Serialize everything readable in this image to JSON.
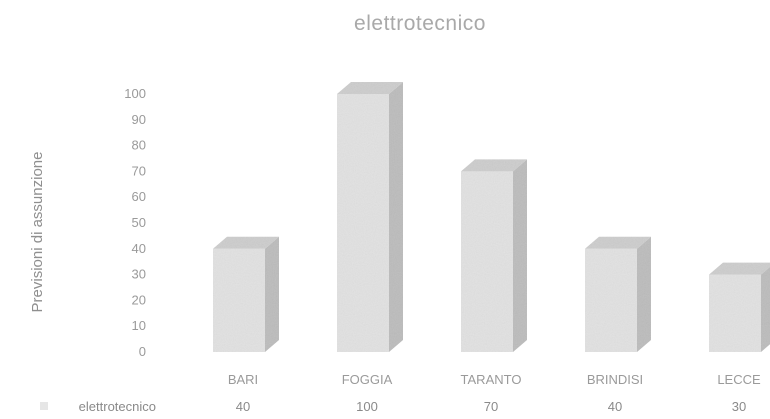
{
  "chart_data": {
    "type": "bar",
    "title": "elettrotecnico",
    "ylabel": "Previsioni di assunzione",
    "xlabel": "",
    "categories": [
      "BARI",
      "FOGGIA",
      "TARANTO",
      "BRINDISI",
      "LECCE"
    ],
    "series": [
      {
        "name": "elettrotecnico",
        "values": [
          40,
          100,
          70,
          40,
          30
        ]
      }
    ],
    "ylim": [
      0,
      100
    ],
    "yticks": [
      0,
      10,
      20,
      30,
      40,
      50,
      60,
      70,
      80,
      90,
      100
    ],
    "grid": false,
    "style": "3d-column",
    "data_table": true,
    "colors": {
      "front": "#e2e2e2",
      "side": "#bcbcbc",
      "top": "#cdcdcd",
      "text": "#9a9a9a"
    }
  }
}
